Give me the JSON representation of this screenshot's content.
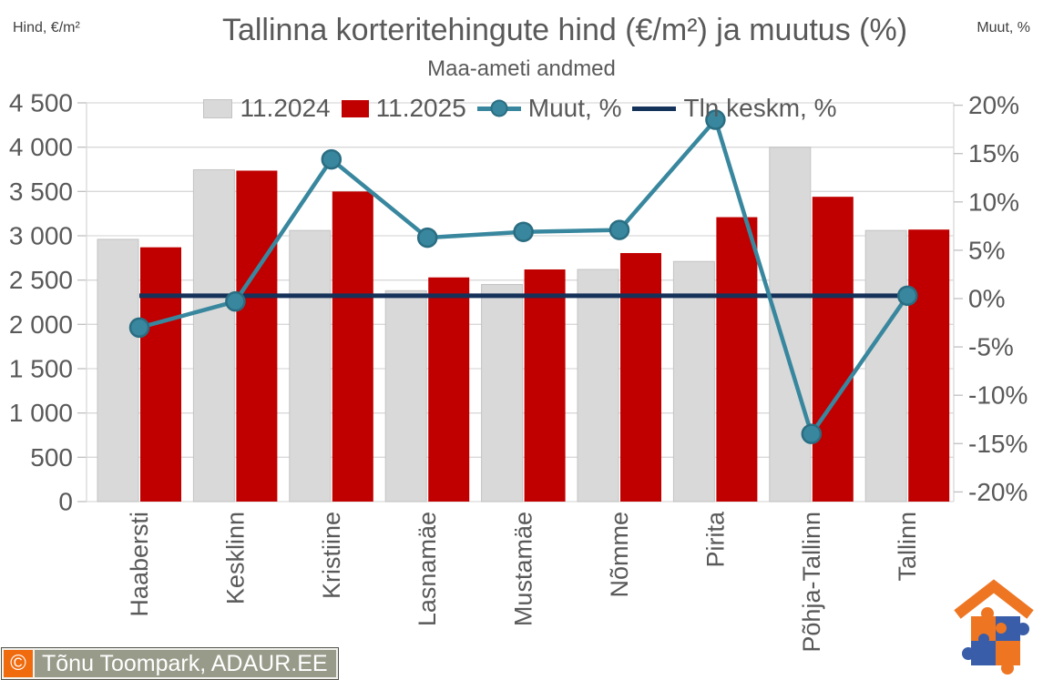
{
  "chart_data": {
    "type": "combo",
    "title": "Tallinna korteritehingute hind (€/m²) ja muutus (%)",
    "subtitle": "Maa-ameti andmed",
    "ylabel_left": "Hind, €/m²",
    "ylabel_right": "Muut, %",
    "grid": true,
    "legend_position": "top",
    "categories": [
      "Haabersti",
      "Kesklinn",
      "Kristiine",
      "Lasnamäe",
      "Mustamäe",
      "Nõmme",
      "Pirita",
      "Põhja-Tallinn",
      "Tallinn"
    ],
    "series": [
      {
        "name": "11.2024",
        "type": "bar",
        "axis": "left",
        "color": "#d9d9d9",
        "border": "#c3c3c3",
        "values": [
          2960,
          3745,
          3060,
          2380,
          2450,
          2620,
          2710,
          4000,
          3060
        ]
      },
      {
        "name": "11.2025",
        "type": "bar",
        "axis": "left",
        "color": "#c00000",
        "border": "none",
        "values": [
          2870,
          3735,
          3500,
          2530,
          2620,
          2805,
          3210,
          3440,
          3070
        ]
      },
      {
        "name": "Muut, %",
        "type": "line",
        "axis": "right",
        "color": "#38879e",
        "marker_stroke": "#2a6d82",
        "markers": true,
        "width": 4.5,
        "values": [
          -3.0,
          -0.3,
          14.4,
          6.3,
          6.9,
          7.1,
          18.5,
          -14.0,
          0.3
        ]
      },
      {
        "name": "Tln keskm, %",
        "type": "line",
        "axis": "right",
        "color": "#15325a",
        "markers": false,
        "width": 5,
        "values": [
          0.3,
          0.3,
          0.3,
          0.3,
          0.3,
          0.3,
          0.3,
          0.3,
          0.3
        ]
      }
    ],
    "left_axis": {
      "min": 0,
      "max": 4500,
      "step": 500,
      "tick_labels": [
        "0",
        "500",
        "1 000",
        "1 500",
        "2 000",
        "2 500",
        "3 000",
        "3 500",
        "4 000",
        "4 500"
      ]
    },
    "right_axis": {
      "min": -20,
      "max": 20,
      "step": 5,
      "tick_labels": [
        "-20%",
        "-15%",
        "-10%",
        "-5%",
        "0%",
        "5%",
        "10%",
        "15%",
        "20%"
      ]
    },
    "colors": {
      "gridline": "#d9d9d9",
      "tick_text": "#595959",
      "title_text": "#595959"
    }
  },
  "watermark": {
    "copyright": "©",
    "text": "Tõnu Toompark, ADAUR.EE"
  },
  "logo": {
    "name": "adaur-house-puzzle",
    "orange": "#ee7623",
    "blue": "#3a5da9"
  }
}
